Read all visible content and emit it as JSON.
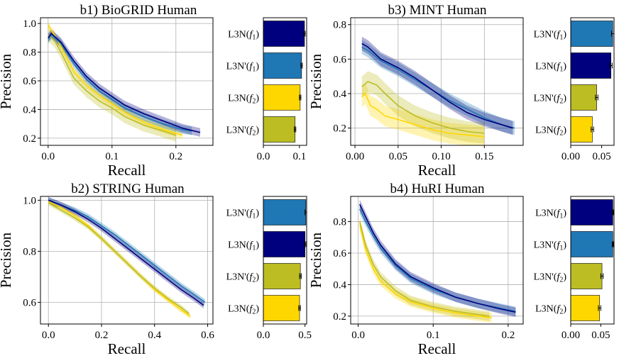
{
  "palette": {
    "L3N'(f1)": "#1f77b4",
    "L3N(f1)": "#00007f",
    "L3N(f2)": "#ffd700",
    "L3N'(f2)": "#bcbd22"
  },
  "chart_data": [
    {
      "id": "b1",
      "type": "line",
      "title": "b1) BioGRID Human",
      "xlabel": "Recall",
      "ylabel": "Precision",
      "xlim": [
        -0.012,
        0.258
      ],
      "ylim": [
        0.15,
        1.04
      ],
      "xticks": [
        0.0,
        0.1,
        0.2
      ],
      "xtick_labels": [
        "0.0",
        "0.1",
        "0.2"
      ],
      "yticks": [
        0.2,
        0.4,
        0.6,
        0.8,
        1.0
      ],
      "ytick_labels": [
        "0.2",
        "0.4",
        "0.6",
        "0.8",
        "1.0"
      ],
      "grid": true,
      "series": [
        {
          "key": "L3N(f2)",
          "band": 0.025,
          "points": [
            [
              0.0,
              0.99
            ],
            [
              0.005,
              0.95
            ],
            [
              0.01,
              0.92
            ],
            [
              0.02,
              0.84
            ],
            [
              0.04,
              0.67
            ],
            [
              0.06,
              0.57
            ],
            [
              0.08,
              0.5
            ],
            [
              0.1,
              0.44
            ],
            [
              0.12,
              0.38
            ],
            [
              0.15,
              0.31
            ],
            [
              0.18,
              0.26
            ],
            [
              0.21,
              0.22
            ]
          ]
        },
        {
          "key": "L3N'(f2)",
          "band": 0.045,
          "points": [
            [
              0.0,
              0.92
            ],
            [
              0.005,
              0.9
            ],
            [
              0.01,
              0.88
            ],
            [
              0.02,
              0.8
            ],
            [
              0.04,
              0.62
            ],
            [
              0.06,
              0.53
            ],
            [
              0.08,
              0.46
            ],
            [
              0.1,
              0.41
            ],
            [
              0.12,
              0.35
            ],
            [
              0.15,
              0.29
            ],
            [
              0.18,
              0.25
            ],
            [
              0.2,
              0.22
            ]
          ]
        },
        {
          "key": "L3N'(f1)",
          "band": 0.03,
          "points": [
            [
              0.0,
              0.89
            ],
            [
              0.005,
              0.92
            ],
            [
              0.01,
              0.9
            ],
            [
              0.02,
              0.86
            ],
            [
              0.04,
              0.72
            ],
            [
              0.06,
              0.61
            ],
            [
              0.08,
              0.53
            ],
            [
              0.1,
              0.47
            ],
            [
              0.12,
              0.41
            ],
            [
              0.15,
              0.35
            ],
            [
              0.18,
              0.3
            ],
            [
              0.21,
              0.26
            ],
            [
              0.225,
              0.25
            ]
          ]
        },
        {
          "key": "L3N(f1)",
          "band": 0.03,
          "points": [
            [
              0.0,
              0.9
            ],
            [
              0.005,
              0.93
            ],
            [
              0.01,
              0.91
            ],
            [
              0.02,
              0.87
            ],
            [
              0.04,
              0.74
            ],
            [
              0.06,
              0.63
            ],
            [
              0.08,
              0.55
            ],
            [
              0.1,
              0.49
            ],
            [
              0.12,
              0.43
            ],
            [
              0.15,
              0.37
            ],
            [
              0.18,
              0.32
            ],
            [
              0.21,
              0.27
            ],
            [
              0.238,
              0.24
            ]
          ]
        }
      ]
    },
    {
      "id": "b1-bar",
      "type": "bar",
      "orientation": "horizontal",
      "categories": [
        "L3N(f1)",
        "L3N'(f1)",
        "L3N(f2)",
        "L3N'(f2)"
      ],
      "values": [
        0.114,
        0.106,
        0.102,
        0.088
      ],
      "errors": [
        0.002,
        0.002,
        0.002,
        0.002
      ],
      "xlim": [
        0,
        0.12
      ],
      "xticks": [
        0.0,
        0.1
      ],
      "xtick_labels": [
        "0.0",
        "0.1"
      ]
    },
    {
      "id": "b3",
      "type": "line",
      "title": "b3) MINT Human",
      "xlabel": "Recall",
      "ylabel": "Precision",
      "xlim": [
        -0.005,
        0.195
      ],
      "ylim": [
        0.1,
        0.84
      ],
      "xticks": [
        0.0,
        0.05,
        0.1,
        0.15
      ],
      "xtick_labels": [
        "0.00",
        "0.05",
        "0.10",
        "0.15"
      ],
      "yticks": [
        0.2,
        0.4,
        0.6,
        0.8
      ],
      "ytick_labels": [
        "0.2",
        "0.4",
        "0.6",
        "0.8"
      ],
      "grid": true,
      "series": [
        {
          "key": "L3N(f2)",
          "band": 0.06,
          "points": [
            [
              0.008,
              0.38
            ],
            [
              0.012,
              0.4
            ],
            [
              0.018,
              0.33
            ],
            [
              0.025,
              0.31
            ],
            [
              0.035,
              0.27
            ],
            [
              0.05,
              0.25
            ],
            [
              0.07,
              0.22
            ],
            [
              0.09,
              0.19
            ],
            [
              0.11,
              0.17
            ],
            [
              0.13,
              0.16
            ],
            [
              0.15,
              0.15
            ]
          ]
        },
        {
          "key": "L3N'(f2)",
          "band": 0.06,
          "points": [
            [
              0.008,
              0.44
            ],
            [
              0.015,
              0.47
            ],
            [
              0.025,
              0.45
            ],
            [
              0.035,
              0.4
            ],
            [
              0.05,
              0.33
            ],
            [
              0.07,
              0.27
            ],
            [
              0.09,
              0.23
            ],
            [
              0.11,
              0.2
            ],
            [
              0.13,
              0.18
            ],
            [
              0.15,
              0.17
            ]
          ]
        },
        {
          "key": "L3N'(f1)",
          "band": 0.04,
          "points": [
            [
              0.008,
              0.67
            ],
            [
              0.015,
              0.65
            ],
            [
              0.03,
              0.59
            ],
            [
              0.05,
              0.54
            ],
            [
              0.07,
              0.48
            ],
            [
              0.09,
              0.42
            ],
            [
              0.11,
              0.36
            ],
            [
              0.13,
              0.31
            ],
            [
              0.15,
              0.26
            ],
            [
              0.17,
              0.22
            ],
            [
              0.185,
              0.2
            ]
          ]
        },
        {
          "key": "L3N(f1)",
          "band": 0.04,
          "points": [
            [
              0.008,
              0.69
            ],
            [
              0.015,
              0.67
            ],
            [
              0.03,
              0.6
            ],
            [
              0.05,
              0.55
            ],
            [
              0.07,
              0.49
            ],
            [
              0.09,
              0.42
            ],
            [
              0.11,
              0.35
            ],
            [
              0.13,
              0.29
            ],
            [
              0.15,
              0.25
            ],
            [
              0.17,
              0.22
            ],
            [
              0.183,
              0.2
            ]
          ]
        }
      ]
    },
    {
      "id": "b3-bar",
      "type": "bar",
      "orientation": "horizontal",
      "categories": [
        "L3N'(f1)",
        "L3N(f1)",
        "L3N'(f2)",
        "L3N(f2)"
      ],
      "values": [
        0.068,
        0.065,
        0.042,
        0.035
      ],
      "errors": [
        0.002,
        0.002,
        0.002,
        0.002
      ],
      "xlim": [
        0,
        0.07
      ],
      "xticks": [
        0.0,
        0.05
      ],
      "xtick_labels": [
        "0.00",
        "0.05"
      ]
    },
    {
      "id": "b2",
      "type": "line",
      "title": "b2) STRING Human",
      "xlabel": "Recall",
      "ylabel": "Precision",
      "xlim": [
        -0.03,
        0.62
      ],
      "ylim": [
        0.515,
        1.015
      ],
      "xticks": [
        0.0,
        0.2,
        0.4,
        0.6
      ],
      "xtick_labels": [
        "0.0",
        "0.2",
        "0.4",
        "0.6"
      ],
      "yticks": [
        0.6,
        0.8,
        1.0
      ],
      "ytick_labels": [
        "0.6",
        "0.8",
        "1.0"
      ],
      "grid": true,
      "series": [
        {
          "key": "L3N(f2)",
          "band": 0.01,
          "points": [
            [
              0.0,
              0.995
            ],
            [
              0.05,
              0.97
            ],
            [
              0.1,
              0.94
            ],
            [
              0.15,
              0.9
            ],
            [
              0.2,
              0.85
            ],
            [
              0.25,
              0.8
            ],
            [
              0.3,
              0.75
            ],
            [
              0.35,
              0.7
            ],
            [
              0.4,
              0.65
            ],
            [
              0.45,
              0.61
            ],
            [
              0.5,
              0.57
            ],
            [
              0.535,
              0.545
            ]
          ]
        },
        {
          "key": "L3N'(f2)",
          "band": 0.01,
          "points": [
            [
              0.0,
              0.99
            ],
            [
              0.05,
              0.96
            ],
            [
              0.1,
              0.93
            ],
            [
              0.15,
              0.895
            ],
            [
              0.2,
              0.85
            ],
            [
              0.25,
              0.8
            ],
            [
              0.3,
              0.75
            ],
            [
              0.35,
              0.7
            ],
            [
              0.4,
              0.655
            ],
            [
              0.45,
              0.615
            ],
            [
              0.5,
              0.58
            ],
            [
              0.53,
              0.555
            ]
          ]
        },
        {
          "key": "L3N'(f1)",
          "band": 0.012,
          "points": [
            [
              0.0,
              1.0
            ],
            [
              0.05,
              0.98
            ],
            [
              0.1,
              0.96
            ],
            [
              0.15,
              0.935
            ],
            [
              0.2,
              0.9
            ],
            [
              0.25,
              0.865
            ],
            [
              0.3,
              0.825
            ],
            [
              0.35,
              0.785
            ],
            [
              0.4,
              0.745
            ],
            [
              0.45,
              0.705
            ],
            [
              0.5,
              0.665
            ],
            [
              0.55,
              0.63
            ],
            [
              0.59,
              0.6
            ]
          ]
        },
        {
          "key": "L3N(f1)",
          "band": 0.012,
          "points": [
            [
              0.0,
              1.0
            ],
            [
              0.05,
              0.98
            ],
            [
              0.1,
              0.955
            ],
            [
              0.15,
              0.925
            ],
            [
              0.2,
              0.89
            ],
            [
              0.25,
              0.85
            ],
            [
              0.3,
              0.81
            ],
            [
              0.35,
              0.77
            ],
            [
              0.4,
              0.73
            ],
            [
              0.45,
              0.69
            ],
            [
              0.5,
              0.65
            ],
            [
              0.55,
              0.615
            ],
            [
              0.585,
              0.588
            ]
          ]
        }
      ]
    },
    {
      "id": "b2-bar",
      "type": "bar",
      "orientation": "horizontal",
      "categories": [
        "L3N'(f1)",
        "L3N(f1)",
        "L3N'(f2)",
        "L3N(f2)"
      ],
      "values": [
        0.51,
        0.5,
        0.445,
        0.435
      ],
      "errors": [
        0.01,
        0.01,
        0.01,
        0.01
      ],
      "xlim": [
        0,
        0.52
      ],
      "xticks": [
        0.0,
        0.5
      ],
      "xtick_labels": [
        "0.0",
        "0.5"
      ]
    },
    {
      "id": "b4",
      "type": "line",
      "title": "b4) HuRI Human",
      "xlabel": "Recall",
      "ylabel": "Precision",
      "xlim": [
        -0.01,
        0.22
      ],
      "ylim": [
        0.15,
        0.96
      ],
      "xticks": [
        0.0,
        0.1,
        0.2
      ],
      "xtick_labels": [
        "0.0",
        "0.1",
        "0.2"
      ],
      "yticks": [
        0.2,
        0.4,
        0.6,
        0.8
      ],
      "ytick_labels": [
        "0.2",
        "0.4",
        "0.6",
        "0.8"
      ],
      "grid": true,
      "series": [
        {
          "key": "L3N(f2)",
          "band": 0.03,
          "points": [
            [
              0.002,
              0.78
            ],
            [
              0.01,
              0.62
            ],
            [
              0.02,
              0.5
            ],
            [
              0.03,
              0.42
            ],
            [
              0.05,
              0.34
            ],
            [
              0.07,
              0.29
            ],
            [
              0.1,
              0.25
            ],
            [
              0.13,
              0.22
            ],
            [
              0.16,
              0.2
            ],
            [
              0.178,
              0.19
            ]
          ]
        },
        {
          "key": "L3N'(f2)",
          "band": 0.03,
          "points": [
            [
              0.002,
              0.8
            ],
            [
              0.01,
              0.65
            ],
            [
              0.02,
              0.53
            ],
            [
              0.03,
              0.45
            ],
            [
              0.05,
              0.36
            ],
            [
              0.07,
              0.3
            ],
            [
              0.1,
              0.26
            ],
            [
              0.13,
              0.23
            ],
            [
              0.16,
              0.21
            ],
            [
              0.175,
              0.2
            ]
          ]
        },
        {
          "key": "L3N'(f1)",
          "band": 0.03,
          "points": [
            [
              0.002,
              0.88
            ],
            [
              0.01,
              0.8
            ],
            [
              0.02,
              0.71
            ],
            [
              0.03,
              0.63
            ],
            [
              0.05,
              0.52
            ],
            [
              0.07,
              0.44
            ],
            [
              0.1,
              0.37
            ],
            [
              0.13,
              0.32
            ],
            [
              0.16,
              0.28
            ],
            [
              0.19,
              0.25
            ],
            [
              0.21,
              0.23
            ]
          ]
        },
        {
          "key": "L3N(f1)",
          "band": 0.03,
          "points": [
            [
              0.002,
              0.91
            ],
            [
              0.01,
              0.83
            ],
            [
              0.02,
              0.73
            ],
            [
              0.03,
              0.65
            ],
            [
              0.05,
              0.53
            ],
            [
              0.07,
              0.45
            ],
            [
              0.1,
              0.38
            ],
            [
              0.13,
              0.32
            ],
            [
              0.16,
              0.28
            ],
            [
              0.19,
              0.245
            ],
            [
              0.21,
              0.225
            ]
          ]
        }
      ]
    },
    {
      "id": "b4-bar",
      "type": "bar",
      "orientation": "horizontal",
      "categories": [
        "L3N(f1)",
        "L3N'(f1)",
        "L3N'(f2)",
        "L3N(f2)"
      ],
      "values": [
        0.07,
        0.07,
        0.052,
        0.048
      ],
      "errors": [
        0.001,
        0.001,
        0.002,
        0.002
      ],
      "xlim": [
        0,
        0.072
      ],
      "xticks": [
        0.0,
        0.05
      ],
      "xtick_labels": [
        "0.00",
        "0.05"
      ]
    }
  ]
}
